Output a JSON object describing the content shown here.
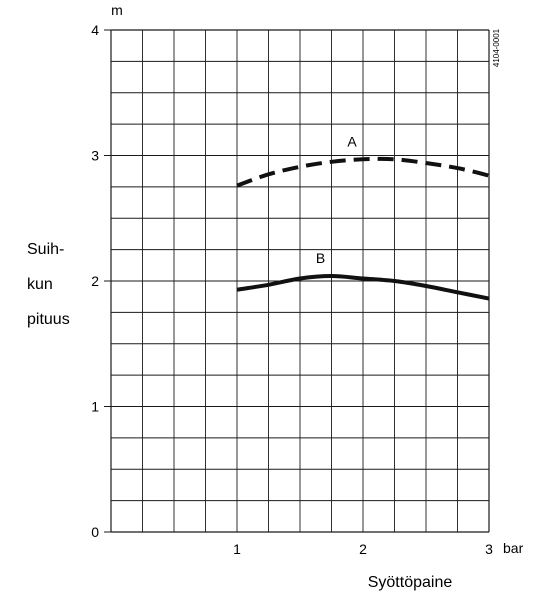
{
  "chart_data": {
    "type": "line",
    "title": "",
    "xlabel": "Syöttöpaine",
    "x_unit": "bar",
    "ylabel_lines": [
      "Suih-",
      "kun",
      "pituus"
    ],
    "y_unit": "m",
    "figure_code": "4104-0001",
    "xlim": [
      0,
      3
    ],
    "ylim": [
      0,
      4
    ],
    "x_ticks": [
      "1",
      "2",
      "3"
    ],
    "y_ticks": [
      "0",
      "1",
      "2",
      "3",
      "4"
    ],
    "grid": true,
    "series": [
      {
        "name": "A",
        "style": "dashed",
        "x": [
          1.0,
          1.25,
          1.5,
          1.75,
          2.0,
          2.25,
          2.5,
          2.75,
          3.0
        ],
        "y": [
          2.76,
          2.85,
          2.91,
          2.95,
          2.97,
          2.97,
          2.94,
          2.9,
          2.84
        ]
      },
      {
        "name": "B",
        "style": "solid",
        "x": [
          1.0,
          1.25,
          1.5,
          1.75,
          2.0,
          2.25,
          2.5,
          2.75,
          3.0
        ],
        "y": [
          1.93,
          1.97,
          2.02,
          2.04,
          2.02,
          2.0,
          1.96,
          1.91,
          1.86
        ]
      }
    ],
    "colors": {
      "line": "#111111",
      "grid": "#1a1a1a",
      "text": "#1a1a1a"
    }
  }
}
